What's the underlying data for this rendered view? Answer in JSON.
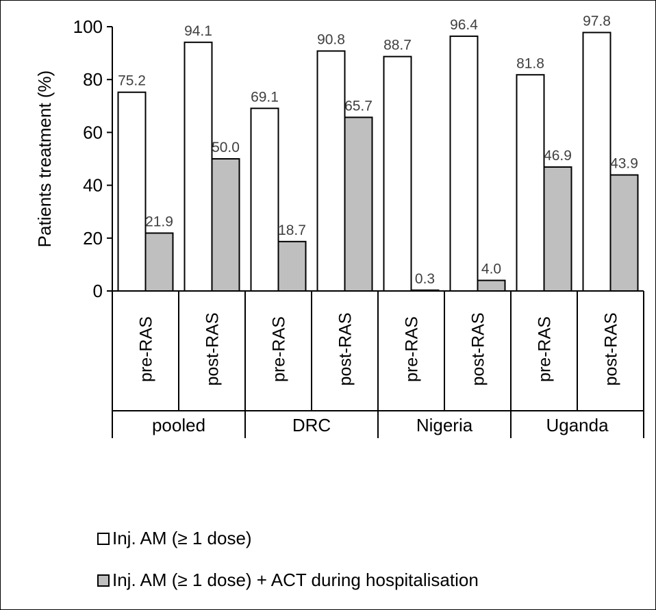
{
  "chart_data": {
    "type": "bar",
    "ylabel": "Patients treatment (%)",
    "ylim": [
      0,
      100
    ],
    "yticks": [
      0,
      20,
      40,
      60,
      80,
      100
    ],
    "groups": [
      {
        "name": "pooled",
        "categories": [
          "pre-RAS",
          "post-RAS"
        ]
      },
      {
        "name": "DRC",
        "categories": [
          "pre-RAS",
          "post-RAS"
        ]
      },
      {
        "name": "Nigeria",
        "categories": [
          "pre-RAS",
          "post-RAS"
        ]
      },
      {
        "name": "Uganda",
        "categories": [
          "pre-RAS",
          "post-RAS"
        ]
      }
    ],
    "series": [
      {
        "name": "Inj. AM (≥ 1 dose)",
        "color": "#ffffff",
        "values": [
          75.2,
          94.1,
          69.1,
          90.8,
          88.7,
          96.4,
          81.8,
          97.8
        ],
        "labels": [
          "75.2",
          "94.1",
          "69.1",
          "90.8",
          "88.7",
          "96.4",
          "81.8",
          "97.8"
        ]
      },
      {
        "name": "Inj. AM (≥ 1 dose) + ACT during hospitalisation",
        "color": "#bfbfbf",
        "values": [
          21.9,
          50.0,
          18.7,
          65.7,
          0.3,
          4.0,
          46.9,
          43.9
        ],
        "labels": [
          "21.9",
          "50.0",
          "18.7",
          "65.7",
          "0.3",
          "4.0",
          "46.9",
          "43.9"
        ]
      }
    ],
    "legend_position": "bottom-left",
    "grid": false
  }
}
